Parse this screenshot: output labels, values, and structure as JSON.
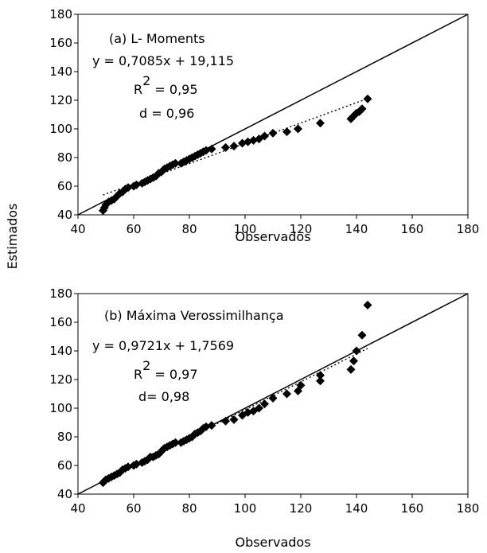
{
  "shared_ylabel": "Estimados",
  "chart_data": [
    {
      "type": "scatter",
      "xlabel": "Observados",
      "xlim": [
        40,
        180
      ],
      "ylim": [
        40,
        180
      ],
      "xticks": [
        40,
        60,
        80,
        100,
        120,
        140,
        160,
        180
      ],
      "yticks": [
        40,
        60,
        80,
        100,
        120,
        140,
        160,
        180
      ],
      "grid": false,
      "annotations": {
        "label": "(a) L- Moments",
        "equation": "y = 0,7085x + 19,115",
        "r2_prefix": "R",
        "r2_sup": "2",
        "r2_value": " = 0,95",
        "d": "d = 0,96"
      },
      "reference_line": {
        "name": "1:1",
        "x": [
          40,
          180
        ],
        "y": [
          40,
          180
        ]
      },
      "trendline": {
        "slope": 0.7085,
        "intercept": 19.115,
        "x_range": [
          49,
          144
        ]
      },
      "points": [
        [
          49,
          43
        ],
        [
          49.5,
          45
        ],
        [
          50,
          47
        ],
        [
          51,
          49
        ],
        [
          52,
          50
        ],
        [
          53,
          51
        ],
        [
          54,
          53
        ],
        [
          55,
          55
        ],
        [
          56,
          56
        ],
        [
          57,
          58
        ],
        [
          58,
          59
        ],
        [
          60,
          60
        ],
        [
          61,
          61
        ],
        [
          63,
          62
        ],
        [
          64,
          63
        ],
        [
          65,
          64
        ],
        [
          66,
          65
        ],
        [
          67,
          66
        ],
        [
          68,
          67
        ],
        [
          69,
          69
        ],
        [
          70,
          70
        ],
        [
          71,
          72
        ],
        [
          72,
          73
        ],
        [
          73,
          74
        ],
        [
          74,
          75
        ],
        [
          75,
          76
        ],
        [
          77,
          76
        ],
        [
          78,
          77
        ],
        [
          79,
          78
        ],
        [
          80,
          79
        ],
        [
          81,
          80
        ],
        [
          82,
          81
        ],
        [
          83,
          82
        ],
        [
          84,
          83
        ],
        [
          85,
          84
        ],
        [
          86,
          85
        ],
        [
          88,
          86
        ],
        [
          93,
          87
        ],
        [
          96,
          88
        ],
        [
          99,
          90
        ],
        [
          101,
          91
        ],
        [
          103,
          92
        ],
        [
          105,
          93
        ],
        [
          107,
          95
        ],
        [
          110,
          97
        ],
        [
          115,
          98
        ],
        [
          119,
          100
        ],
        [
          127,
          104
        ],
        [
          138,
          107
        ],
        [
          139,
          109
        ],
        [
          140,
          111
        ],
        [
          141,
          112
        ],
        [
          142,
          114
        ],
        [
          144,
          121
        ]
      ]
    },
    {
      "type": "scatter",
      "xlabel": "Observados",
      "xlim": [
        40,
        180
      ],
      "ylim": [
        40,
        180
      ],
      "xticks": [
        40,
        60,
        80,
        100,
        120,
        140,
        160,
        180
      ],
      "yticks": [
        40,
        60,
        80,
        100,
        120,
        140,
        160,
        180
      ],
      "grid": false,
      "annotations": {
        "label": "(b) Máxima Verossimilhança",
        "equation": "y = 0,9721x + 1,7569",
        "r2_prefix": "R",
        "r2_sup": "2",
        "r2_value": " = 0,97",
        "d": "d= 0,98"
      },
      "reference_line": {
        "name": "1:1",
        "x": [
          40,
          180
        ],
        "y": [
          40,
          180
        ]
      },
      "trendline": {
        "slope": 0.9721,
        "intercept": 1.7569,
        "x_range": [
          49,
          144
        ]
      },
      "points": [
        [
          49,
          48
        ],
        [
          49.5,
          49
        ],
        [
          50,
          50
        ],
        [
          51,
          51
        ],
        [
          52,
          52
        ],
        [
          53,
          53
        ],
        [
          54,
          54
        ],
        [
          55,
          55
        ],
        [
          56,
          57
        ],
        [
          57,
          58
        ],
        [
          58,
          59
        ],
        [
          60,
          60
        ],
        [
          61,
          61
        ],
        [
          63,
          62
        ],
        [
          64,
          63
        ],
        [
          65,
          64
        ],
        [
          66,
          66
        ],
        [
          67,
          66
        ],
        [
          68,
          67
        ],
        [
          69,
          68
        ],
        [
          70,
          70
        ],
        [
          71,
          72
        ],
        [
          72,
          73
        ],
        [
          73,
          74
        ],
        [
          74,
          75
        ],
        [
          75,
          76
        ],
        [
          77,
          76
        ],
        [
          78,
          77
        ],
        [
          79,
          78
        ],
        [
          80,
          79
        ],
        [
          81,
          80
        ],
        [
          82,
          82
        ],
        [
          83,
          83
        ],
        [
          84,
          84
        ],
        [
          85,
          86
        ],
        [
          86,
          87
        ],
        [
          88,
          88
        ],
        [
          93,
          91
        ],
        [
          96,
          92
        ],
        [
          99,
          95
        ],
        [
          101,
          97
        ],
        [
          103,
          98
        ],
        [
          105,
          100
        ],
        [
          107,
          103
        ],
        [
          110,
          107
        ],
        [
          115,
          110
        ],
        [
          119,
          112
        ],
        [
          120,
          116
        ],
        [
          127,
          119
        ],
        [
          127,
          123
        ],
        [
          138,
          127
        ],
        [
          139,
          133
        ],
        [
          140,
          140
        ],
        [
          142,
          151
        ],
        [
          144,
          172
        ]
      ]
    }
  ]
}
